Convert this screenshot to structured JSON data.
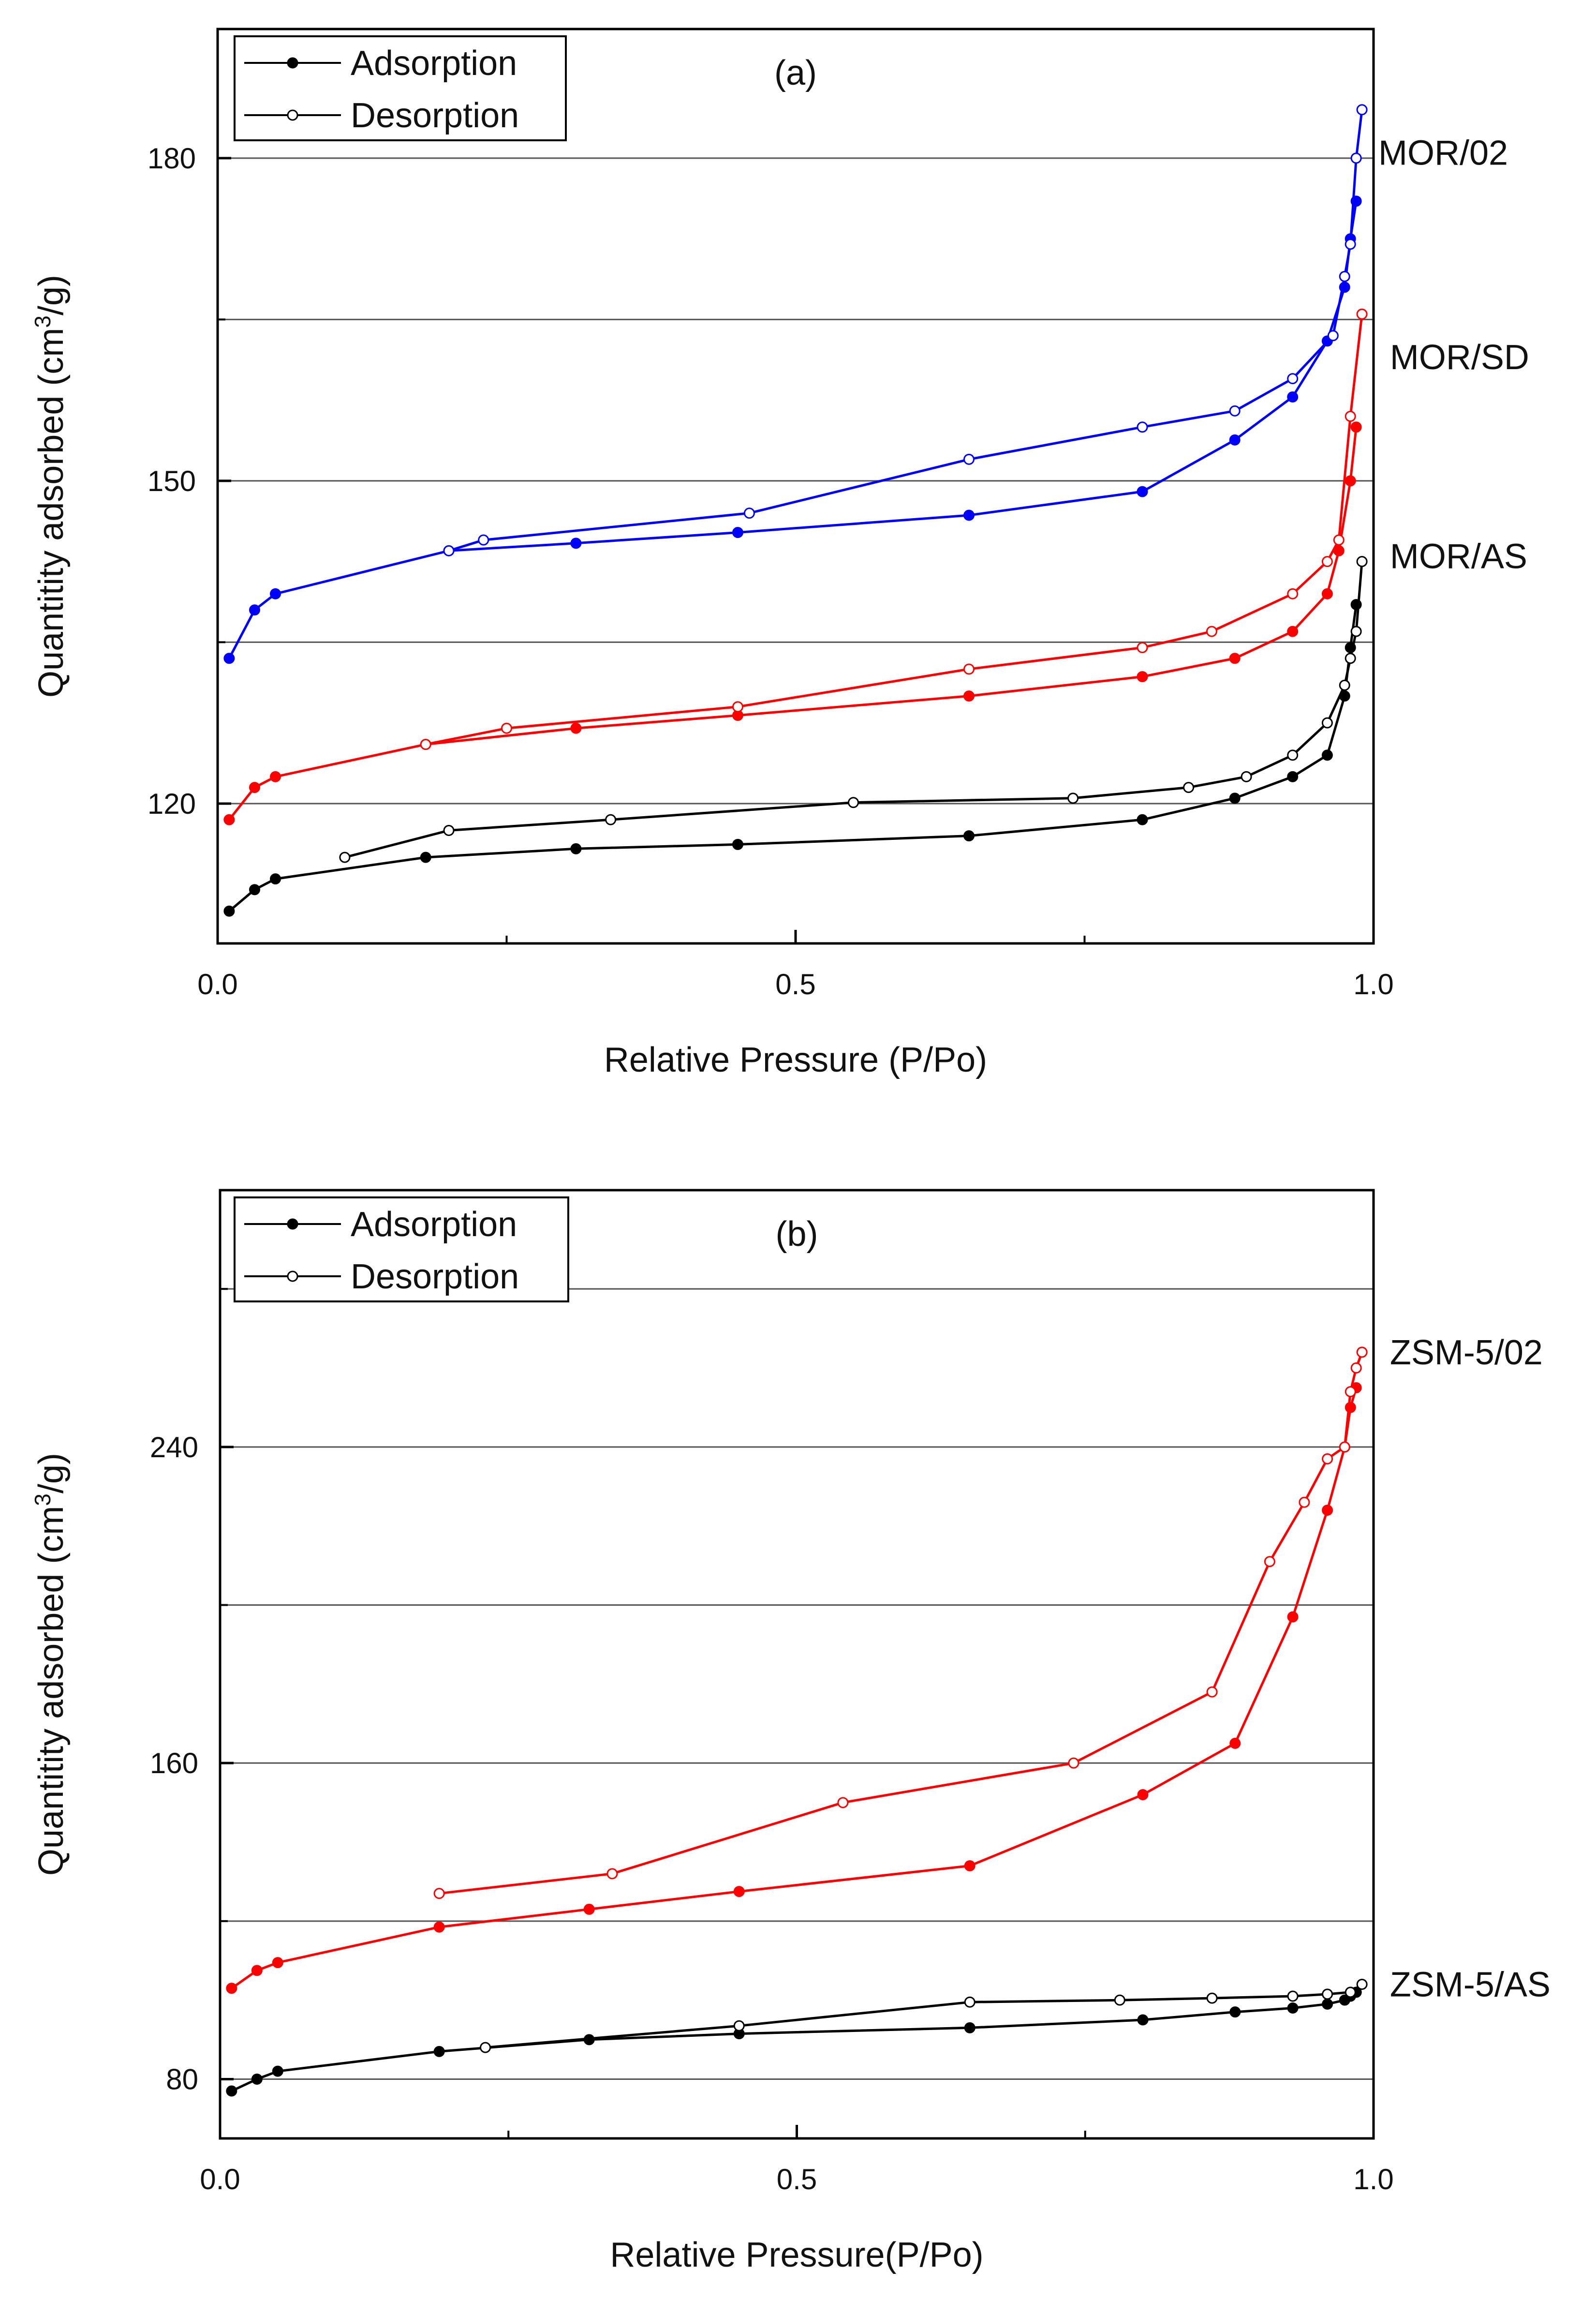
{
  "chart_data": [
    {
      "type": "line",
      "panel": "(a)",
      "title": "(a)",
      "xlabel": "Relative Pressure (P/Po)",
      "ylabel_main": "Quantitity adsorbed (cm",
      "ylabel_sup": "3",
      "ylabel_tail": "/g)",
      "xlim": [
        0.0,
        1.0
      ],
      "ylim": [
        107,
        192
      ],
      "x_ticks": [
        {
          "value": 0.0,
          "label": "0.0"
        },
        {
          "value": 0.5,
          "label": "0.5"
        },
        {
          "value": 1.0,
          "label": "1.0"
        }
      ],
      "y_ticks": [
        {
          "value": 120,
          "label": "120"
        },
        {
          "value": 150,
          "label": "150"
        },
        {
          "value": 180,
          "label": "180"
        }
      ],
      "gridlines": [
        120,
        135,
        150,
        165,
        180
      ],
      "legend": {
        "position": "top-left",
        "entries": [
          {
            "label": "Adsorption",
            "marker": "filled"
          },
          {
            "label": "Desorption",
            "marker": "open"
          }
        ]
      },
      "series": [
        {
          "name": "MOR/02",
          "color": "#0000ff",
          "label_anchor": [
            1.0,
            180.5
          ],
          "adsorption": [
            [
              0.01,
              133.5
            ],
            [
              0.032,
              138
            ],
            [
              0.05,
              139.5
            ],
            [
              0.2,
              143.5
            ],
            [
              0.31,
              144.2
            ],
            [
              0.45,
              145.2
            ],
            [
              0.65,
              146.8
            ],
            [
              0.8,
              149
            ],
            [
              0.88,
              153.8
            ],
            [
              0.93,
              157.8
            ],
            [
              0.96,
              163
            ],
            [
              0.975,
              168
            ],
            [
              0.98,
              172.5
            ],
            [
              0.985,
              176
            ]
          ],
          "desorption": [
            [
              0.99,
              184.5
            ],
            [
              0.985,
              180
            ],
            [
              0.98,
              172
            ],
            [
              0.975,
              169
            ],
            [
              0.965,
              163.5
            ],
            [
              0.93,
              159.5
            ],
            [
              0.88,
              156.5
            ],
            [
              0.8,
              155
            ],
            [
              0.65,
              152
            ],
            [
              0.46,
              147
            ],
            [
              0.23,
              144.5
            ],
            [
              0.2,
              143.5
            ]
          ]
        },
        {
          "name": "MOR/SD",
          "color": "#ff0000",
          "label_anchor": [
            1.01,
            161.5
          ],
          "adsorption": [
            [
              0.01,
              118.5
            ],
            [
              0.032,
              121.5
            ],
            [
              0.05,
              122.5
            ],
            [
              0.18,
              125.5
            ],
            [
              0.31,
              127
            ],
            [
              0.45,
              128.2
            ],
            [
              0.65,
              130
            ],
            [
              0.8,
              131.8
            ],
            [
              0.88,
              133.5
            ],
            [
              0.93,
              136
            ],
            [
              0.96,
              139.5
            ],
            [
              0.97,
              143.5
            ],
            [
              0.98,
              150
            ],
            [
              0.985,
              155
            ]
          ],
          "desorption": [
            [
              0.99,
              165.5
            ],
            [
              0.98,
              156
            ],
            [
              0.97,
              144.5
            ],
            [
              0.96,
              142.5
            ],
            [
              0.93,
              139.5
            ],
            [
              0.86,
              136
            ],
            [
              0.8,
              134.5
            ],
            [
              0.65,
              132.5
            ],
            [
              0.45,
              129
            ],
            [
              0.25,
              127
            ],
            [
              0.18,
              125.5
            ]
          ]
        },
        {
          "name": "MOR/AS",
          "color": "#000000",
          "label_anchor": [
            1.01,
            143
          ],
          "adsorption": [
            [
              0.01,
              110
            ],
            [
              0.032,
              112
            ],
            [
              0.05,
              113
            ],
            [
              0.18,
              115
            ],
            [
              0.31,
              115.8
            ],
            [
              0.45,
              116.2
            ],
            [
              0.65,
              117
            ],
            [
              0.8,
              118.5
            ],
            [
              0.88,
              120.5
            ],
            [
              0.93,
              122.5
            ],
            [
              0.96,
              124.5
            ],
            [
              0.975,
              130
            ],
            [
              0.98,
              134.5
            ],
            [
              0.985,
              138.5
            ]
          ],
          "desorption": [
            [
              0.99,
              142.5
            ],
            [
              0.985,
              136
            ],
            [
              0.98,
              133.5
            ],
            [
              0.975,
              131
            ],
            [
              0.96,
              127.5
            ],
            [
              0.93,
              124.5
            ],
            [
              0.89,
              122.5
            ],
            [
              0.84,
              121.5
            ],
            [
              0.74,
              120.5
            ],
            [
              0.55,
              120.1
            ],
            [
              0.34,
              118.5
            ],
            [
              0.2,
              117.5
            ],
            [
              0.11,
              115
            ]
          ]
        }
      ]
    },
    {
      "type": "line",
      "panel": "(b)",
      "title": "(b)",
      "xlabel": "Relative Pressure(P/Po)",
      "ylabel_main": "Quantitity adsorbed (cm",
      "ylabel_sup": "3",
      "ylabel_tail": "/g)",
      "xlim": [
        0.0,
        1.0
      ],
      "ylim": [
        65,
        305
      ],
      "x_ticks": [
        {
          "value": 0.0,
          "label": "0.0"
        },
        {
          "value": 0.5,
          "label": "0.5"
        },
        {
          "value": 1.0,
          "label": "1.0"
        }
      ],
      "y_ticks": [
        {
          "value": 80,
          "label": "80"
        },
        {
          "value": 160,
          "label": "160"
        },
        {
          "value": 240,
          "label": "240"
        }
      ],
      "gridlines": [
        80,
        120,
        160,
        200,
        240,
        280
      ],
      "legend": {
        "position": "top-left",
        "entries": [
          {
            "label": "Adsorption",
            "marker": "filled"
          },
          {
            "label": "Desorption",
            "marker": "open"
          }
        ]
      },
      "series": [
        {
          "name": "ZSM-5/02",
          "color": "#ff0000",
          "label_anchor": [
            1.01,
            264
          ],
          "adsorption": [
            [
              0.01,
              103
            ],
            [
              0.032,
              107.5
            ],
            [
              0.05,
              109.5
            ],
            [
              0.19,
              118.5
            ],
            [
              0.32,
              123
            ],
            [
              0.45,
              127.5
            ],
            [
              0.65,
              134
            ],
            [
              0.8,
              152
            ],
            [
              0.88,
              165
            ],
            [
              0.93,
              197
            ],
            [
              0.96,
              224
            ],
            [
              0.975,
              240
            ],
            [
              0.98,
              250
            ],
            [
              0.985,
              255
            ]
          ],
          "desorption": [
            [
              0.99,
              264
            ],
            [
              0.985,
              260
            ],
            [
              0.98,
              254
            ],
            [
              0.975,
              240
            ],
            [
              0.96,
              237
            ],
            [
              0.94,
              226
            ],
            [
              0.91,
              211
            ],
            [
              0.86,
              178
            ],
            [
              0.74,
              160
            ],
            [
              0.54,
              150
            ],
            [
              0.34,
              132
            ],
            [
              0.19,
              127
            ]
          ]
        },
        {
          "name": "ZSM-5/AS",
          "color": "#000000",
          "label_anchor": [
            1.01,
            104
          ],
          "adsorption": [
            [
              0.01,
              77
            ],
            [
              0.032,
              80
            ],
            [
              0.05,
              82
            ],
            [
              0.19,
              87
            ],
            [
              0.32,
              90
            ],
            [
              0.45,
              91.5
            ],
            [
              0.65,
              93
            ],
            [
              0.8,
              95
            ],
            [
              0.88,
              97
            ],
            [
              0.93,
              98
            ],
            [
              0.96,
              99
            ],
            [
              0.975,
              100
            ],
            [
              0.98,
              101
            ],
            [
              0.985,
              102
            ]
          ],
          "desorption": [
            [
              0.99,
              104
            ],
            [
              0.98,
              102
            ],
            [
              0.96,
              101.5
            ],
            [
              0.93,
              101
            ],
            [
              0.86,
              100.5
            ],
            [
              0.78,
              100
            ],
            [
              0.65,
              99.5
            ],
            [
              0.45,
              93.5
            ],
            [
              0.23,
              88
            ]
          ]
        }
      ]
    }
  ]
}
